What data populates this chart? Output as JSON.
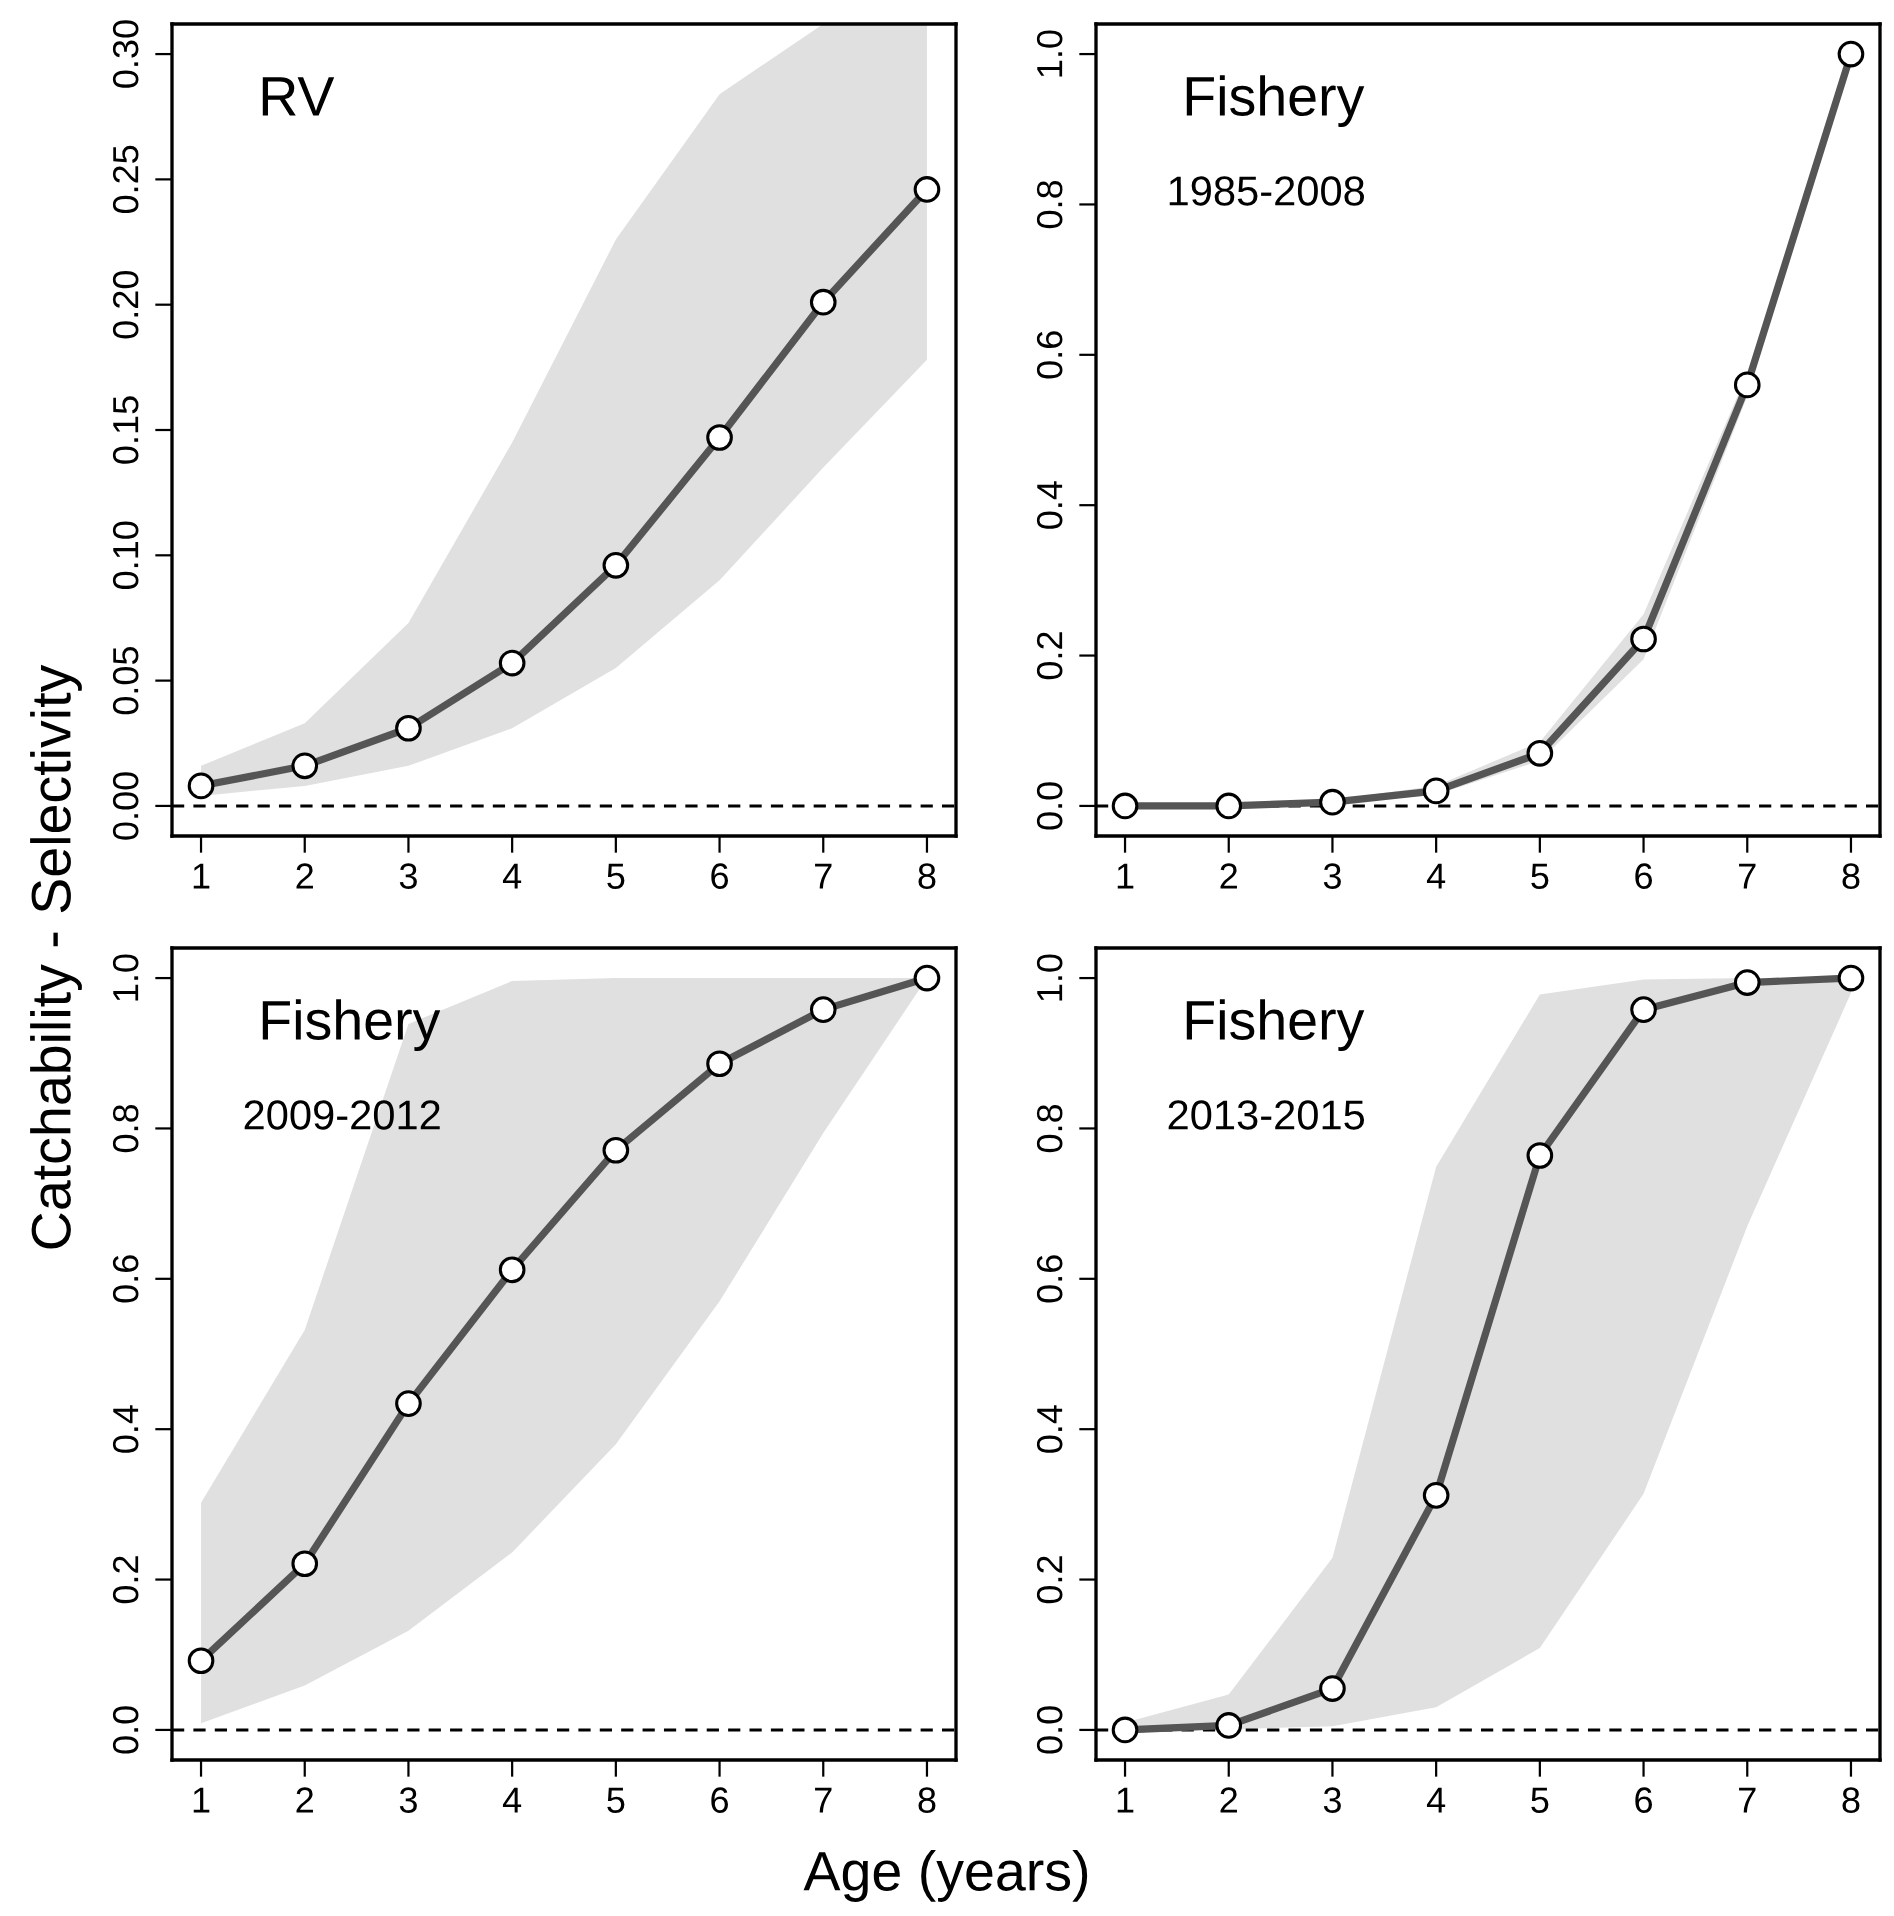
{
  "chart_data": [
    {
      "type": "line",
      "title": "RV",
      "ylabel": "Catchability - Selectivity",
      "x": [
        1,
        2,
        3,
        4,
        5,
        6,
        7,
        8
      ],
      "xlim": [
        0.72,
        8.28
      ],
      "xticks": [
        1,
        2,
        3,
        4,
        5,
        6,
        7,
        8
      ],
      "ylim": [
        -0.012,
        0.312
      ],
      "yticks": [
        {
          "value": 0,
          "label": "0.00"
        },
        {
          "value": 0.05,
          "label": "0.05"
        },
        {
          "value": 0.1,
          "label": "0.10"
        },
        {
          "value": 0.15,
          "label": "0.15"
        },
        {
          "value": 0.2,
          "label": "0.20"
        },
        {
          "value": 0.25,
          "label": "0.25"
        },
        {
          "value": 0.3,
          "label": "0.30"
        }
      ],
      "marker": "circle",
      "line_style": "solid",
      "grid": false,
      "series": [
        {
          "color": "#555555",
          "values": [
            0.008,
            0.016,
            0.031,
            0.057,
            0.096,
            0.147,
            0.201,
            0.246
          ],
          "lower": [
            0.004,
            0.008,
            0.016,
            0.031,
            0.055,
            0.09,
            0.135,
            0.178
          ],
          "upper": [
            0.016,
            0.033,
            0.073,
            0.145,
            0.226,
            0.284,
            0.312,
            0.312
          ]
        }
      ],
      "ref_lines": [
        {
          "axis": "y",
          "value": 0,
          "color": "#000000",
          "line_style": "dashed"
        }
      ]
    },
    {
      "type": "line",
      "title": "Fishery",
      "subtitle": "1985-2008",
      "x": [
        1,
        2,
        3,
        4,
        5,
        6,
        7,
        8
      ],
      "xlim": [
        0.72,
        8.28
      ],
      "xticks": [
        1,
        2,
        3,
        4,
        5,
        6,
        7,
        8
      ],
      "ylim": [
        -0.04,
        1.04
      ],
      "yticks": [
        {
          "value": 0,
          "label": "0.0"
        },
        0.2,
        0.4,
        0.6,
        0.8,
        {
          "value": 1,
          "label": "1.0"
        }
      ],
      "marker": "circle",
      "line_style": "solid",
      "grid": false,
      "series": [
        {
          "color": "#555555",
          "values": [
            0.0,
            0.0,
            0.005,
            0.02,
            0.07,
            0.222,
            0.56,
            1.0
          ],
          "lower": [
            0.0,
            0.0,
            0.003,
            0.015,
            0.06,
            0.195,
            0.545,
            1.0
          ],
          "upper": [
            0.002,
            0.002,
            0.008,
            0.027,
            0.085,
            0.255,
            0.575,
            1.0
          ]
        }
      ],
      "ref_lines": [
        {
          "axis": "y",
          "value": 0,
          "color": "#000000",
          "line_style": "dashed"
        }
      ]
    },
    {
      "type": "line",
      "title": "Fishery",
      "subtitle": "2009-2012",
      "xlabel": "Age (years)",
      "x": [
        1,
        2,
        3,
        4,
        5,
        6,
        7,
        8
      ],
      "xlim": [
        0.72,
        8.28
      ],
      "xticks": [
        1,
        2,
        3,
        4,
        5,
        6,
        7,
        8
      ],
      "ylim": [
        -0.04,
        1.04
      ],
      "yticks": [
        {
          "value": 0,
          "label": "0.0"
        },
        0.2,
        0.4,
        0.6,
        0.8,
        {
          "value": 1,
          "label": "1.0"
        }
      ],
      "marker": "circle",
      "line_style": "solid",
      "grid": false,
      "series": [
        {
          "color": "#555555",
          "values": [
            0.092,
            0.221,
            0.434,
            0.612,
            0.771,
            0.886,
            0.958,
            1.0
          ],
          "lower": [
            0.009,
            0.059,
            0.132,
            0.236,
            0.38,
            0.57,
            0.794,
            1.0
          ],
          "upper": [
            0.302,
            0.532,
            0.939,
            0.996,
            1.0,
            1.0,
            1.0,
            1.0
          ]
        }
      ],
      "ref_lines": [
        {
          "axis": "y",
          "value": 0,
          "color": "#000000",
          "line_style": "dashed"
        }
      ]
    },
    {
      "type": "line",
      "title": "Fishery",
      "subtitle": "2013-2015",
      "x": [
        1,
        2,
        3,
        4,
        5,
        6,
        7,
        8
      ],
      "xlim": [
        0.72,
        8.28
      ],
      "xticks": [
        1,
        2,
        3,
        4,
        5,
        6,
        7,
        8
      ],
      "ylim": [
        -0.04,
        1.04
      ],
      "yticks": [
        {
          "value": 0,
          "label": "0.0"
        },
        0.2,
        0.4,
        0.6,
        0.8,
        {
          "value": 1,
          "label": "1.0"
        }
      ],
      "marker": "circle",
      "line_style": "solid",
      "grid": false,
      "series": [
        {
          "color": "#555555",
          "values": [
            0.0,
            0.006,
            0.055,
            0.312,
            0.764,
            0.958,
            0.994,
            1.0
          ],
          "lower": [
            0.0,
            0.001,
            0.005,
            0.03,
            0.109,
            0.314,
            0.67,
            0.98
          ],
          "upper": [
            0.01,
            0.047,
            0.229,
            0.749,
            0.978,
            0.998,
            1.0,
            1.0
          ]
        }
      ],
      "ref_lines": [
        {
          "axis": "y",
          "value": 0,
          "color": "#000000",
          "line_style": "dashed"
        }
      ]
    }
  ]
}
